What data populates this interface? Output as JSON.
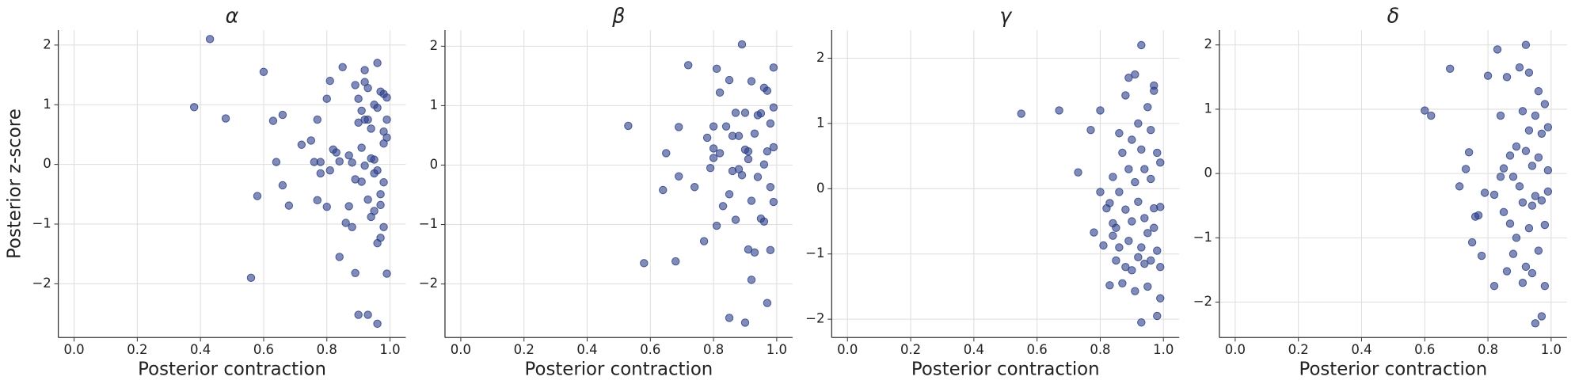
{
  "chart_data": [
    {
      "type": "scatter",
      "title": "α",
      "xlabel": "Posterior contraction",
      "ylabel": "Posterior z-score",
      "color": "#2b3d87",
      "grid": true,
      "xlim": [
        -0.05,
        1.05
      ],
      "ylim": [
        -2.9,
        2.25
      ],
      "xticks": [
        {
          "value": 0,
          "label": "0.0"
        },
        0.2,
        0.4,
        0.6,
        0.8,
        {
          "value": 1,
          "label": "1.0"
        }
      ],
      "yticks": [
        {
          "value": -2,
          "label": "−2"
        },
        {
          "value": -1,
          "label": "−1"
        },
        0,
        1,
        2
      ],
      "x": [
        0.38,
        0.43,
        0.48,
        0.56,
        0.58,
        0.6,
        0.63,
        0.64,
        0.66,
        0.66,
        0.68,
        0.72,
        0.75,
        0.76,
        0.77,
        0.78,
        0.77,
        0.78,
        0.8,
        0.8,
        0.81,
        0.81,
        0.82,
        0.83,
        0.84,
        0.84,
        0.85,
        0.86,
        0.87,
        0.87,
        0.88,
        0.88,
        0.89,
        0.89,
        0.89,
        0.9,
        0.9,
        0.9,
        0.91,
        0.91,
        0.91,
        0.92,
        0.92,
        0.92,
        0.92,
        0.93,
        0.93,
        0.93,
        0.93,
        0.94,
        0.94,
        0.94,
        0.95,
        0.95,
        0.95,
        0.95,
        0.96,
        0.96,
        0.96,
        0.96,
        0.96,
        0.97,
        0.97,
        0.97,
        0.97,
        0.98,
        0.98,
        0.98,
        0.98,
        0.98,
        0.99,
        0.99,
        0.99,
        0.99
      ],
      "y": [
        0.96,
        2.1,
        0.77,
        -1.9,
        -0.53,
        1.55,
        0.73,
        0.04,
        0.83,
        -0.35,
        -0.69,
        0.33,
        0.4,
        0.04,
        0.75,
        0.04,
        -0.6,
        -0.15,
        1.1,
        -0.71,
        1.4,
        -0.1,
        0.25,
        0.2,
        0.05,
        -1.55,
        1.63,
        -0.98,
        0.15,
        -0.7,
        -1.05,
        0.03,
        1.33,
        -1.82,
        -0.25,
        0.7,
        -2.52,
        1.1,
        0.28,
        -0.29,
        0.9,
        1.38,
        1.58,
        0.75,
        -0.02,
        -0.59,
        1.28,
        -2.52,
        0.75,
        0.1,
        -0.88,
        0.6,
        1.0,
        -0.78,
        0.08,
        -0.15,
        -2.67,
        1.7,
        -1.32,
        0.95,
        -0.1,
        -0.68,
        1.22,
        -1.23,
        -0.5,
        0.55,
        0.35,
        -1.05,
        1.18,
        -0.3,
        -1.83,
        0.75,
        1.12,
        0.45
      ]
    },
    {
      "type": "scatter",
      "title": "β",
      "xlabel": "Posterior contraction",
      "color": "#2b3d87",
      "grid": true,
      "xlim": [
        -0.05,
        1.05
      ],
      "ylim": [
        -2.9,
        2.27
      ],
      "xticks": [
        {
          "value": 0,
          "label": "0.0"
        },
        0.2,
        0.4,
        0.6,
        0.8,
        {
          "value": 1,
          "label": "1.0"
        }
      ],
      "yticks": [
        {
          "value": -2,
          "label": "−2"
        },
        {
          "value": -1,
          "label": "−1"
        },
        0,
        1,
        2
      ],
      "x": [
        0.53,
        0.58,
        0.64,
        0.65,
        0.68,
        0.69,
        0.69,
        0.72,
        0.74,
        0.77,
        0.78,
        0.79,
        0.8,
        0.8,
        0.8,
        0.81,
        0.81,
        0.82,
        0.82,
        0.83,
        0.84,
        0.85,
        0.85,
        0.85,
        0.86,
        0.86,
        0.87,
        0.87,
        0.88,
        0.88,
        0.89,
        0.89,
        0.9,
        0.9,
        0.9,
        0.91,
        0.91,
        0.91,
        0.92,
        0.92,
        0.92,
        0.93,
        0.93,
        0.94,
        0.94,
        0.95,
        0.95,
        0.96,
        0.96,
        0.96,
        0.97,
        0.97,
        0.97,
        0.98,
        0.98,
        0.98,
        0.99,
        0.99,
        0.99,
        0.99
      ],
      "y": [
        0.66,
        -1.65,
        -0.42,
        0.2,
        -1.62,
        0.64,
        -0.19,
        1.68,
        -0.37,
        -1.28,
        0.46,
        -0.05,
        0.65,
        0.28,
        0.12,
        1.62,
        -1.02,
        1.22,
        0.2,
        -0.69,
        0.65,
        1.43,
        -0.49,
        -2.57,
        -0.1,
        0.49,
        -0.92,
        0.88,
        -0.07,
        0.49,
        2.03,
        -0.17,
        -2.65,
        0.88,
        0.26,
        0.1,
        -1.42,
        0.23,
        1.41,
        -0.6,
        -1.93,
        -1.47,
        0.53,
        0.84,
        -0.2,
        0.87,
        -0.9,
        1.3,
        -0.95,
        0.01,
        -2.32,
        0.23,
        1.25,
        0.7,
        -0.37,
        -1.43,
        1.64,
        0.3,
        -0.62,
        0.97
      ]
    },
    {
      "type": "scatter",
      "title": "γ",
      "xlabel": "Posterior contraction",
      "color": "#2b3d87",
      "grid": true,
      "xlim": [
        -0.05,
        1.05
      ],
      "ylim": [
        -2.28,
        2.43
      ],
      "xticks": [
        {
          "value": 0,
          "label": "0.0"
        },
        0.2,
        0.4,
        0.6,
        0.8,
        {
          "value": 1,
          "label": "1.0"
        }
      ],
      "yticks": [
        {
          "value": -2,
          "label": "−2"
        },
        {
          "value": -1,
          "label": "−1"
        },
        0,
        1,
        2
      ],
      "x": [
        0.55,
        0.67,
        0.73,
        0.77,
        0.78,
        0.8,
        0.8,
        0.81,
        0.82,
        0.83,
        0.83,
        0.84,
        0.84,
        0.84,
        0.85,
        0.85,
        0.86,
        0.86,
        0.86,
        0.87,
        0.87,
        0.88,
        0.88,
        0.88,
        0.89,
        0.89,
        0.89,
        0.9,
        0.9,
        0.9,
        0.91,
        0.91,
        0.91,
        0.92,
        0.92,
        0.92,
        0.93,
        0.93,
        0.93,
        0.93,
        0.94,
        0.94,
        0.94,
        0.95,
        0.95,
        0.95,
        0.96,
        0.96,
        0.96,
        0.97,
        0.97,
        0.97,
        0.97,
        0.98,
        0.98,
        0.98,
        0.99,
        0.99,
        0.99,
        0.99
      ],
      "y": [
        1.15,
        1.2,
        0.25,
        0.9,
        -0.67,
        1.2,
        -0.05,
        -0.87,
        -0.3,
        -1.48,
        -0.22,
        -0.53,
        -0.72,
        0.18,
        -1.1,
        -0.6,
        -0.9,
        0.85,
        -0.05,
        -1.45,
        0.55,
        -1.2,
        1.43,
        -0.32,
        1.7,
        -0.8,
        0.3,
        -1.25,
        0.75,
        -0.5,
        -1.57,
        1.75,
        0.1,
        -1.05,
        1.0,
        -0.2,
        2.2,
        -2.05,
        -0.9,
        0.6,
        -1.15,
        0.3,
        -0.45,
        -1.5,
        1.25,
        -0.68,
        0.9,
        -1.1,
        0.15,
        1.5,
        -0.3,
        1.58,
        -0.6,
        -1.95,
        0.55,
        -0.95,
        -1.68,
        0.4,
        -0.28,
        -1.2
      ]
    },
    {
      "type": "scatter",
      "title": "δ",
      "xlabel": "Posterior contraction",
      "color": "#2b3d87",
      "grid": true,
      "xlim": [
        -0.05,
        1.05
      ],
      "ylim": [
        -2.55,
        2.23
      ],
      "xticks": [
        {
          "value": 0,
          "label": "0.0"
        },
        0.2,
        0.4,
        0.6,
        0.8,
        {
          "value": 1,
          "label": "1.0"
        }
      ],
      "yticks": [
        {
          "value": -2,
          "label": "−2"
        },
        {
          "value": -1,
          "label": "−1"
        },
        0,
        1,
        2
      ],
      "x": [
        0.6,
        0.62,
        0.68,
        0.71,
        0.73,
        0.74,
        0.75,
        0.76,
        0.77,
        0.78,
        0.79,
        0.8,
        0.82,
        0.82,
        0.83,
        0.84,
        0.84,
        0.85,
        0.85,
        0.86,
        0.86,
        0.87,
        0.87,
        0.88,
        0.88,
        0.89,
        0.89,
        0.9,
        0.9,
        0.91,
        0.91,
        0.91,
        0.92,
        0.92,
        0.92,
        0.93,
        0.93,
        0.93,
        0.94,
        0.94,
        0.94,
        0.95,
        0.95,
        0.95,
        0.96,
        0.96,
        0.96,
        0.97,
        0.97,
        0.97,
        0.98,
        0.98,
        0.98,
        0.99,
        0.99,
        0.99
      ],
      "y": [
        0.98,
        0.9,
        1.63,
        -0.2,
        0.07,
        0.33,
        -1.07,
        -0.67,
        -0.65,
        -1.28,
        -0.3,
        1.52,
        -1.75,
        -0.33,
        1.93,
        -0.05,
        0.9,
        0.08,
        -0.6,
        -1.52,
        1.5,
        -0.78,
        0.28,
        -1.25,
        -0.05,
        0.42,
        -1.0,
        1.65,
        -0.2,
        0.97,
        -1.7,
        -0.45,
        2.0,
        0.35,
        -1.45,
        1.57,
        -0.85,
        0.67,
        -1.55,
        0.12,
        -0.5,
        -2.33,
        0.9,
        -0.35,
        1.28,
        -1.2,
        0.25,
        -2.22,
        0.62,
        -0.42,
        -1.75,
        1.08,
        -0.8,
        0.05,
        -0.28,
        0.72
      ]
    }
  ]
}
